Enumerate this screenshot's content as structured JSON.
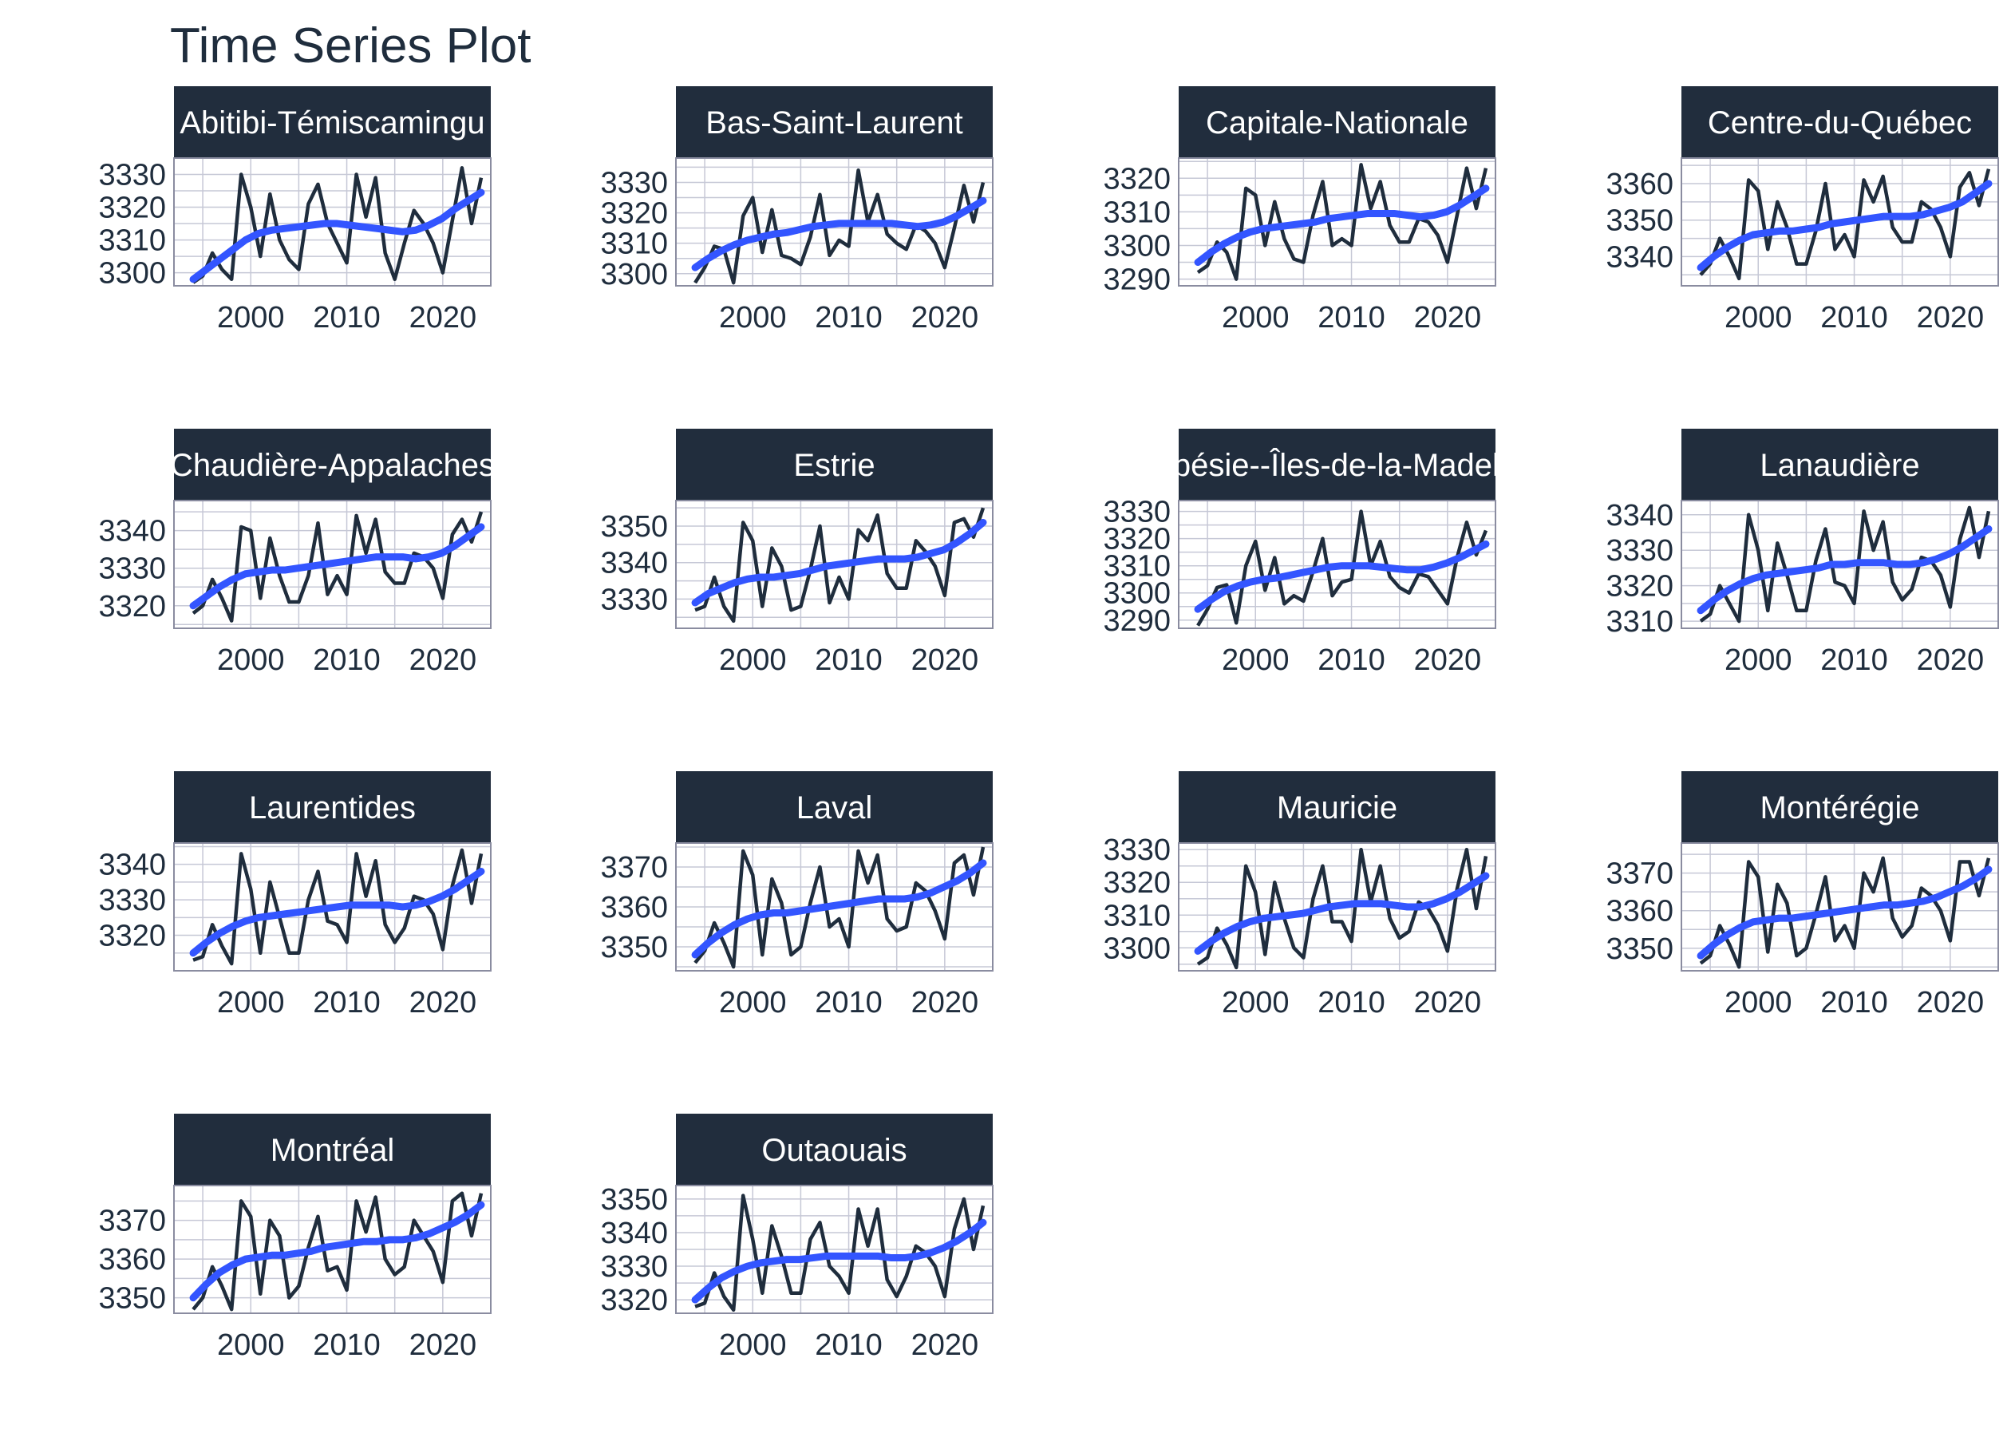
{
  "chart_data": {
    "type": "line",
    "title": "Time Series Plot",
    "layout": "faceted 4x4 grid (14 panels), free y scales",
    "x_ticks": [
      2000,
      2010,
      2020
    ],
    "x_range": [
      1992,
      2025
    ],
    "grid": true,
    "colors": {
      "series_line": "#1f2d3d",
      "trend_line": "#3355ff",
      "strip_bg": "#212d3d",
      "strip_text": "#ffffff",
      "grid": "#c6c8d6",
      "panel_border": "#8a8ca0",
      "text": "#1f2d3d"
    },
    "years": [
      1994,
      1995,
      1996,
      1997,
      1998,
      1999,
      2000,
      2001,
      2002,
      2003,
      2004,
      2005,
      2006,
      2007,
      2008,
      2009,
      2010,
      2011,
      2012,
      2013,
      2014,
      2015,
      2016,
      2017,
      2018,
      2019,
      2020,
      2021,
      2022,
      2023,
      2024
    ],
    "panels": [
      {
        "name": "Abitibi-Témiscamingue",
        "strip_label": "Abitibi-Témiscamingu",
        "y_ticks": [
          3300,
          3310,
          3320,
          3330
        ],
        "y_range": [
          3296,
          3335
        ],
        "values": [
          3297,
          3299,
          3306,
          3301,
          3298,
          3330,
          3320,
          3305,
          3324,
          3310,
          3304,
          3301,
          3321,
          3327,
          3315,
          3309,
          3303,
          3330,
          3317,
          3329,
          3306,
          3298,
          3309,
          3319,
          3315,
          3309,
          3300,
          3316,
          3332,
          3315,
          3329
        ],
        "trend": [
          3298,
          3301,
          3304,
          3307,
          3310,
          3312,
          3313,
          3313.5,
          3314,
          3314.5,
          3315,
          3315,
          3314.5,
          3314,
          3313.5,
          3313,
          3312.5,
          3313,
          3314.5,
          3316.5,
          3319.5,
          3322,
          3324.5
        ]
      },
      {
        "name": "Bas-Saint-Laurent",
        "strip_label": "Bas-Saint-Laurent",
        "y_ticks": [
          3300,
          3310,
          3320,
          3330
        ],
        "y_range": [
          3296,
          3338
        ],
        "values": [
          3297,
          3302,
          3309,
          3308,
          3297,
          3319,
          3325,
          3307,
          3321,
          3306,
          3305,
          3303,
          3312,
          3326,
          3306,
          3311,
          3309,
          3334,
          3317,
          3326,
          3313,
          3310,
          3308,
          3316,
          3314,
          3310,
          3302,
          3315,
          3329,
          3317,
          3330
        ],
        "trend": [
          3302,
          3305,
          3307.5,
          3309.5,
          3311,
          3312,
          3313,
          3313.5,
          3314.5,
          3315.5,
          3316,
          3316.5,
          3316.5,
          3316.5,
          3316.5,
          3316.5,
          3316,
          3315.5,
          3316,
          3317,
          3319,
          3321.5,
          3324
        ]
      },
      {
        "name": "Capitale-Nationale",
        "strip_label": "Capitale-Nationale",
        "y_ticks": [
          3290,
          3300,
          3310,
          3320
        ],
        "y_range": [
          3288,
          3326
        ],
        "values": [
          3292,
          3294,
          3301,
          3298,
          3290,
          3317,
          3315,
          3300,
          3313,
          3302,
          3296,
          3295,
          3309,
          3319,
          3300,
          3302,
          3300,
          3324,
          3311,
          3319,
          3306,
          3301,
          3301,
          3308,
          3307,
          3303,
          3295,
          3309,
          3323,
          3311,
          3323
        ],
        "trend": [
          3295,
          3298,
          3300.5,
          3302.5,
          3304,
          3305,
          3305.5,
          3306,
          3306.5,
          3307,
          3308,
          3308.5,
          3309,
          3309.5,
          3309.5,
          3309.5,
          3309,
          3308.5,
          3309,
          3310,
          3312,
          3314.5,
          3317
        ]
      },
      {
        "name": "Centre-du-Québec",
        "strip_label": "Centre-du-Québec",
        "y_ticks": [
          3340,
          3350,
          3360
        ],
        "y_range": [
          3332,
          3367
        ],
        "values": [
          3335,
          3338,
          3345,
          3340,
          3334,
          3361,
          3358,
          3342,
          3355,
          3348,
          3338,
          3338,
          3347,
          3360,
          3342,
          3346,
          3340,
          3361,
          3355,
          3362,
          3348,
          3344,
          3344,
          3355,
          3353,
          3348,
          3340,
          3359,
          3363,
          3354,
          3364
        ],
        "trend": [
          3337,
          3340,
          3342.5,
          3344.5,
          3346,
          3346.5,
          3347,
          3347,
          3347.5,
          3348,
          3349,
          3349.5,
          3350,
          3350.5,
          3351,
          3351,
          3351,
          3351.5,
          3352.5,
          3353.5,
          3355,
          3357.5,
          3360
        ]
      },
      {
        "name": "Chaudière-Appalaches",
        "strip_label": "Chaudière-Appalaches",
        "y_ticks": [
          3320,
          3330,
          3340
        ],
        "y_range": [
          3314,
          3348
        ],
        "values": [
          3318,
          3320,
          3327,
          3322,
          3316,
          3341,
          3340,
          3322,
          3338,
          3328,
          3321,
          3321,
          3328,
          3342,
          3323,
          3328,
          3323,
          3344,
          3334,
          3343,
          3329,
          3326,
          3326,
          3334,
          3333,
          3330,
          3322,
          3339,
          3343,
          3337,
          3345
        ],
        "trend": [
          3320,
          3322.5,
          3325,
          3327,
          3328.5,
          3329,
          3329.5,
          3329.5,
          3330,
          3330.5,
          3331,
          3331.5,
          3332,
          3332.5,
          3333,
          3333,
          3333,
          3332.5,
          3333,
          3334,
          3336,
          3338.5,
          3341
        ]
      },
      {
        "name": "Estrie",
        "strip_label": "Estrie",
        "y_ticks": [
          3330,
          3340,
          3350
        ],
        "y_range": [
          3322,
          3357
        ],
        "values": [
          3327,
          3328,
          3336,
          3328,
          3324,
          3351,
          3346,
          3328,
          3344,
          3339,
          3327,
          3328,
          3338,
          3350,
          3329,
          3336,
          3330,
          3349,
          3346,
          3353,
          3337,
          3333,
          3333,
          3346,
          3343,
          3339,
          3331,
          3351,
          3352,
          3347,
          3355
        ],
        "trend": [
          3329,
          3331.5,
          3333,
          3334.5,
          3335.5,
          3336,
          3336,
          3336.5,
          3337,
          3338,
          3339,
          3339.5,
          3340,
          3340.5,
          3341,
          3341,
          3341,
          3341.5,
          3342.5,
          3343.5,
          3345.5,
          3348,
          3351
        ]
      },
      {
        "name": "Gaspésie--Îles-de-la-Madeleine",
        "strip_label": "Gaspésie--Îles-de-la-Madeleine",
        "y_ticks": [
          3290,
          3300,
          3310,
          3320,
          3330
        ],
        "y_range": [
          3287,
          3334
        ],
        "values": [
          3288,
          3294,
          3302,
          3303,
          3289,
          3310,
          3319,
          3301,
          3313,
          3296,
          3299,
          3297,
          3308,
          3320,
          3299,
          3304,
          3305,
          3330,
          3310,
          3319,
          3306,
          3302,
          3300,
          3307,
          3306,
          3301,
          3296,
          3313,
          3326,
          3314,
          3323
        ],
        "trend": [
          3294,
          3297.5,
          3300.5,
          3302.5,
          3304,
          3305,
          3305.5,
          3306.5,
          3307.5,
          3308.5,
          3309.5,
          3310,
          3310,
          3310,
          3309.5,
          3309,
          3308.5,
          3308.5,
          3309.5,
          3311,
          3313,
          3315.5,
          3318
        ]
      },
      {
        "name": "Lanaudière",
        "strip_label": "Lanaudière",
        "y_ticks": [
          3310,
          3320,
          3330,
          3340
        ],
        "y_range": [
          3308,
          3344
        ],
        "values": [
          3310,
          3312,
          3320,
          3315,
          3310,
          3340,
          3330,
          3313,
          3332,
          3323,
          3313,
          3313,
          3327,
          3336,
          3321,
          3320,
          3315,
          3341,
          3330,
          3338,
          3321,
          3316,
          3319,
          3328,
          3327,
          3323,
          3314,
          3333,
          3342,
          3328,
          3341
        ],
        "trend": [
          3313,
          3316,
          3318.5,
          3320.5,
          3322,
          3323,
          3323.5,
          3324,
          3324.5,
          3325,
          3326,
          3326,
          3326.5,
          3326.5,
          3326.5,
          3326,
          3326,
          3326.5,
          3327.5,
          3329,
          3331,
          3333.5,
          3336
        ]
      },
      {
        "name": "Laurentides",
        "strip_label": "Laurentides",
        "y_ticks": [
          3320,
          3330,
          3340
        ],
        "y_range": [
          3310,
          3346
        ],
        "values": [
          3313,
          3314,
          3323,
          3317,
          3312,
          3343,
          3333,
          3315,
          3335,
          3325,
          3315,
          3315,
          3330,
          3338,
          3324,
          3323,
          3318,
          3343,
          3331,
          3341,
          3323,
          3318,
          3322,
          3331,
          3330,
          3326,
          3316,
          3334,
          3344,
          3329,
          3343
        ],
        "trend": [
          3315,
          3318,
          3320.5,
          3322.5,
          3324,
          3325,
          3325.5,
          3326,
          3326.5,
          3327,
          3327.5,
          3328,
          3328.5,
          3328.5,
          3328.5,
          3328.5,
          3328,
          3328.5,
          3329.5,
          3331,
          3333,
          3335.5,
          3338
        ]
      },
      {
        "name": "Laval",
        "strip_label": "Laval",
        "y_ticks": [
          3350,
          3360,
          3370
        ],
        "y_range": [
          3344,
          3376
        ],
        "values": [
          3346,
          3349,
          3356,
          3351,
          3345,
          3374,
          3368,
          3348,
          3367,
          3361,
          3348,
          3350,
          3361,
          3370,
          3355,
          3357,
          3350,
          3374,
          3366,
          3373,
          3357,
          3354,
          3355,
          3366,
          3364,
          3359,
          3352,
          3371,
          3373,
          3363,
          3375
        ],
        "trend": [
          3348,
          3351,
          3353.5,
          3355.5,
          3357,
          3358,
          3358.5,
          3358.5,
          3359,
          3359.5,
          3360,
          3360.5,
          3361,
          3361.5,
          3362,
          3362,
          3362,
          3362.5,
          3363.5,
          3365,
          3366.5,
          3368.5,
          3371
        ]
      },
      {
        "name": "Mauricie",
        "strip_label": "Mauricie",
        "y_ticks": [
          3300,
          3310,
          3320,
          3330
        ],
        "y_range": [
          3293,
          3332
        ],
        "values": [
          3295,
          3297,
          3306,
          3301,
          3294,
          3325,
          3317,
          3298,
          3320,
          3309,
          3300,
          3297,
          3315,
          3325,
          3308,
          3308,
          3302,
          3330,
          3314,
          3325,
          3309,
          3303,
          3305,
          3314,
          3312,
          3307,
          3299,
          3318,
          3330,
          3312,
          3328
        ],
        "trend": [
          3299,
          3302,
          3304.5,
          3306.5,
          3308,
          3309,
          3309.5,
          3310,
          3310.5,
          3311.5,
          3312.5,
          3313,
          3313.5,
          3313.5,
          3313.5,
          3313,
          3312.5,
          3312.5,
          3313.5,
          3315,
          3317,
          3319.5,
          3322
        ]
      },
      {
        "name": "Montérégie",
        "strip_label": "Montérégie",
        "y_ticks": [
          3350,
          3360,
          3370
        ],
        "y_range": [
          3344,
          3378
        ],
        "values": [
          3346,
          3348,
          3356,
          3351,
          3345,
          3373,
          3369,
          3349,
          3367,
          3362,
          3348,
          3350,
          3359,
          3369,
          3352,
          3356,
          3350,
          3370,
          3365,
          3374,
          3358,
          3353,
          3356,
          3366,
          3364,
          3360,
          3352,
          3373,
          3373,
          3364,
          3374
        ],
        "trend": [
          3348,
          3351,
          3353.5,
          3355.5,
          3357,
          3357.5,
          3358,
          3358,
          3358.5,
          3359,
          3359.5,
          3360,
          3360.5,
          3361,
          3361.5,
          3361.5,
          3362,
          3362.5,
          3363.5,
          3365,
          3366.5,
          3368.5,
          3371
        ]
      },
      {
        "name": "Montréal",
        "strip_label": "Montréal",
        "y_ticks": [
          3350,
          3360,
          3370
        ],
        "y_range": [
          3346,
          3379
        ],
        "values": [
          3347,
          3350,
          3358,
          3353,
          3347,
          3375,
          3371,
          3351,
          3370,
          3366,
          3350,
          3353,
          3363,
          3371,
          3357,
          3358,
          3352,
          3375,
          3367,
          3376,
          3360,
          3356,
          3358,
          3370,
          3366,
          3362,
          3354,
          3375,
          3377,
          3366,
          3377
        ],
        "trend": [
          3350,
          3353.5,
          3356.5,
          3358.5,
          3360,
          3360.5,
          3361,
          3361,
          3361.5,
          3362,
          3363,
          3363.5,
          3364,
          3364.5,
          3364.5,
          3365,
          3365,
          3365.5,
          3366.5,
          3368,
          3369.5,
          3371.5,
          3374
        ]
      },
      {
        "name": "Outaouais",
        "strip_label": "Outaouais",
        "y_ticks": [
          3320,
          3330,
          3340,
          3350
        ],
        "y_range": [
          3316,
          3354
        ],
        "values": [
          3318,
          3319,
          3328,
          3321,
          3317,
          3351,
          3338,
          3322,
          3342,
          3333,
          3322,
          3322,
          3338,
          3343,
          3330,
          3327,
          3322,
          3347,
          3336,
          3347,
          3326,
          3321,
          3327,
          3336,
          3334,
          3330,
          3321,
          3341,
          3350,
          3335,
          3348
        ],
        "trend": [
          3320,
          3323.5,
          3326.5,
          3328.5,
          3330,
          3331,
          3331.5,
          3332,
          3332,
          3332.5,
          3333,
          3333,
          3333,
          3333,
          3333,
          3332.5,
          3332.5,
          3333,
          3334,
          3335.5,
          3337.5,
          3340,
          3343
        ]
      }
    ]
  }
}
